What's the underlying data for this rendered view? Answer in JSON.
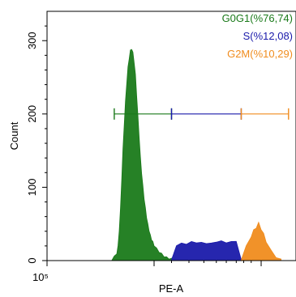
{
  "chart_data": {
    "type": "area",
    "title": "",
    "xlabel": "PE-A",
    "ylabel": "Count",
    "x_scale": "log",
    "x_tick_labels": [
      {
        "value": 100000,
        "text": "10⁵"
      }
    ],
    "ylim": [
      0,
      340
    ],
    "y_ticks": [
      0,
      100,
      200,
      300
    ],
    "grid": false,
    "legend_position": "top-right",
    "series": [
      {
        "name": "G0G1(%76,74)",
        "color": "#1a7a1a",
        "x": [
          0.26,
          0.27,
          0.28,
          0.285,
          0.29,
          0.295,
          0.3,
          0.305,
          0.31,
          0.315,
          0.32,
          0.325,
          0.33,
          0.335,
          0.34,
          0.345,
          0.35,
          0.355,
          0.36,
          0.365,
          0.37,
          0.375,
          0.38,
          0.385,
          0.39,
          0.395,
          0.4,
          0.405,
          0.41,
          0.415,
          0.42,
          0.425,
          0.43,
          0.44,
          0.45,
          0.46,
          0.47,
          0.48,
          0.49,
          0.5
        ],
        "y": [
          0,
          4,
          9,
          18,
          40,
          70,
          110,
          150,
          185,
          215,
          240,
          262,
          275,
          285,
          288,
          282,
          270,
          252,
          225,
          195,
          168,
          140,
          118,
          100,
          84,
          70,
          58,
          48,
          40,
          33,
          28,
          24,
          20,
          15,
          11,
          8,
          5,
          3,
          2,
          1
        ]
      },
      {
        "name": "S(%12,08)",
        "color": "#1a1aaa",
        "x": [
          0.5,
          0.52,
          0.54,
          0.56,
          0.58,
          0.6,
          0.62,
          0.64,
          0.66,
          0.68,
          0.7,
          0.72,
          0.74,
          0.76,
          0.78
        ],
        "y": [
          1,
          18,
          24,
          20,
          26,
          22,
          25,
          21,
          24,
          23,
          27,
          22,
          26,
          24,
          1
        ]
      },
      {
        "name": "G2M(%10,29)",
        "color": "#f08c1e",
        "x": [
          0.78,
          0.8,
          0.82,
          0.83,
          0.84,
          0.85,
          0.86,
          0.87,
          0.88,
          0.9,
          0.92,
          0.94
        ],
        "y": [
          1,
          18,
          32,
          40,
          44,
          50,
          42,
          35,
          25,
          12,
          4,
          0
        ]
      }
    ],
    "gates": [
      {
        "name": "G0G1(%76,74)",
        "x_start": 0.27,
        "x_end": 0.5,
        "y": 200,
        "color": "#1a7a1a"
      },
      {
        "name": "S(%12,08)",
        "x_start": 0.5,
        "x_end": 0.78,
        "y": 200,
        "color": "#1a1aaa"
      },
      {
        "name": "G2M(%10,29)",
        "x_start": 0.78,
        "x_end": 0.97,
        "y": 200,
        "color": "#f08c1e"
      }
    ]
  }
}
